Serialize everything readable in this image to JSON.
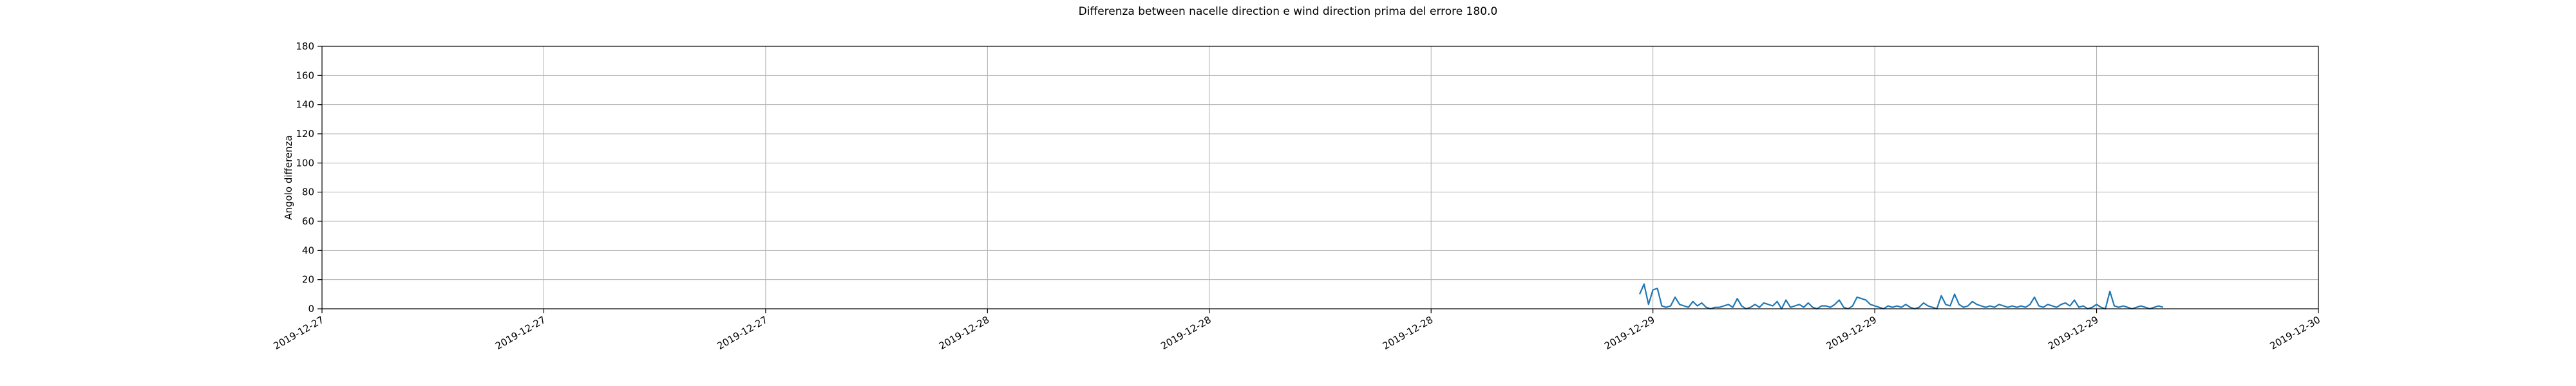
{
  "chart_data": {
    "type": "line",
    "title": "Differenza between nacelle direction e wind direction prima del errore 180.0",
    "ylabel": "Angolo differenza",
    "xlabel": "",
    "ylim": [
      0,
      180
    ],
    "yticks": [
      0,
      20,
      40,
      60,
      80,
      100,
      120,
      140,
      160,
      180
    ],
    "xlim_index": [
      0,
      9
    ],
    "xtick_labels": [
      "2019-12-27",
      "2019-12-27",
      "2019-12-27",
      "2019-12-28",
      "2019-12-28",
      "2019-12-28",
      "2019-12-29",
      "2019-12-29",
      "2019-12-29",
      "2019-12-30"
    ],
    "grid": true,
    "line_color": "#1f77b4",
    "series": [
      {
        "name": "",
        "x": [
          5.94,
          5.96,
          5.98,
          6.0,
          6.02,
          6.04,
          6.06,
          6.08,
          6.1,
          6.12,
          6.14,
          6.16,
          6.18,
          6.2,
          6.22,
          6.24,
          6.26,
          6.28,
          6.3,
          6.32,
          6.34,
          6.36,
          6.38,
          6.4,
          6.42,
          6.44,
          6.46,
          6.48,
          6.5,
          6.52,
          6.54,
          6.56,
          6.58,
          6.6,
          6.62,
          6.64,
          6.66,
          6.68,
          6.7,
          6.72,
          6.74,
          6.76,
          6.78,
          6.8,
          6.82,
          6.84,
          6.86,
          6.88,
          6.9,
          6.92,
          6.94,
          6.96,
          6.98,
          7.0,
          7.02,
          7.04,
          7.06,
          7.08,
          7.1,
          7.12,
          7.14,
          7.16,
          7.18,
          7.2,
          7.22,
          7.24,
          7.26,
          7.28,
          7.3,
          7.32,
          7.34,
          7.36,
          7.38,
          7.4,
          7.42,
          7.44,
          7.46,
          7.48,
          7.5,
          7.52,
          7.54,
          7.56,
          7.58,
          7.6,
          7.62,
          7.64,
          7.66,
          7.68,
          7.7,
          7.72,
          7.74,
          7.76,
          7.78,
          7.8,
          7.82,
          7.84,
          7.86,
          7.88,
          7.9,
          7.92,
          7.94,
          7.96,
          7.98,
          8.0,
          8.02,
          8.04,
          8.06,
          8.08,
          8.1,
          8.12,
          8.14,
          8.16,
          8.18,
          8.2,
          8.22,
          8.24,
          8.26,
          8.28,
          8.3
        ],
        "y": [
          10,
          17,
          3,
          13,
          14,
          2,
          1,
          2,
          8,
          3,
          2,
          1,
          5,
          2,
          4,
          1,
          0,
          1,
          1,
          2,
          3,
          1,
          7,
          2,
          0,
          1,
          3,
          1,
          4,
          3,
          2,
          5,
          0,
          6,
          1,
          2,
          3,
          1,
          4,
          1,
          0,
          2,
          2,
          1,
          3,
          6,
          1,
          0,
          2,
          8,
          7,
          6,
          3,
          2,
          1,
          0,
          2,
          1,
          2,
          1,
          3,
          1,
          0,
          1,
          4,
          2,
          1,
          0,
          9,
          3,
          2,
          10,
          3,
          1,
          2,
          5,
          3,
          2,
          1,
          2,
          1,
          3,
          2,
          1,
          2,
          1,
          2,
          1,
          3,
          8,
          2,
          1,
          3,
          2,
          1,
          3,
          4,
          2,
          6,
          1,
          2,
          0,
          1,
          3,
          1,
          0,
          12,
          2,
          1,
          2,
          1,
          0,
          1,
          2,
          1,
          0,
          1,
          2,
          1
        ]
      }
    ]
  }
}
